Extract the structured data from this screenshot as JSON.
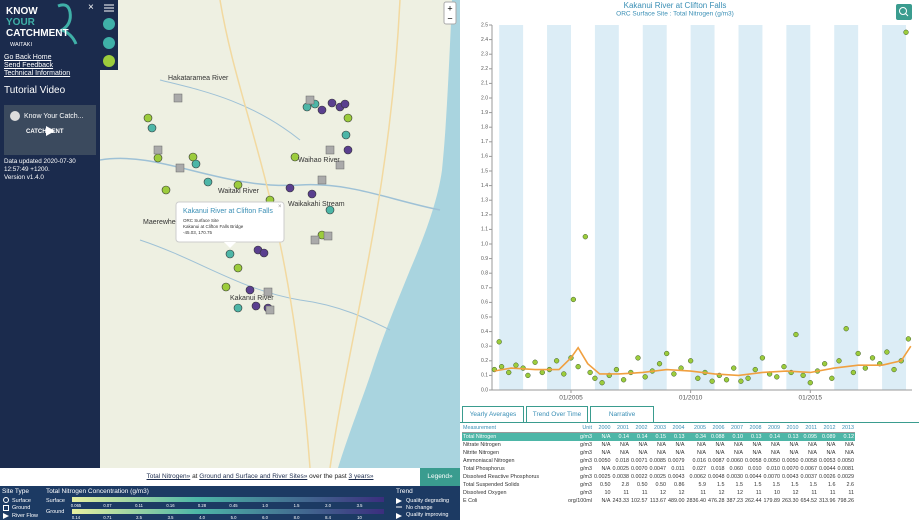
{
  "sidebar": {
    "logo": [
      "KNOW",
      "YOUR",
      "CATCHMENT"
    ],
    "region": "WAITAKI",
    "close": "×",
    "links": [
      "Go Back Home",
      "Send Feedback",
      "Technical Information"
    ],
    "video_heading": "Tutorial Video",
    "video_title": "Know Your Catch...",
    "video_logo": "CATCHMENT",
    "updated": "Data updated 2020-07-30 12:57:49 +1200.",
    "version": "Version v1.4.0"
  },
  "map": {
    "zoom_in": "+",
    "zoom_out": "−",
    "labels": [
      "Hakataramea River",
      "Waitaki River",
      "Maerewhenua",
      "Waihao River",
      "Waikakahi Stream",
      "Kakanui River"
    ],
    "popup": {
      "title": "Kakanui River at Clifton Falls",
      "lines": [
        "ORC Surface Site",
        "Kakanui at Clifton Falls Bridge",
        "-45.03, 170.75"
      ],
      "close": "×"
    }
  },
  "filter": {
    "measure": "Total Nitrogen»",
    "at": "at",
    "sites": "Ground and Surface and River Sites»",
    "over": "over the past",
    "period": "3 years»",
    "legend_button": "Legend»"
  },
  "legend": {
    "site_type": "Site Type",
    "site_types": [
      "Surface",
      "Ground",
      "River Flow"
    ],
    "concentration": "Total Nitrogen Concentration (g/m3)",
    "surface": "Surface",
    "ground": "Ground",
    "surface_scale": [
      "0.065",
      "0.07",
      "0.11",
      "0.16",
      "0.28",
      "0.45",
      "1.0",
      "1.5",
      "2.0",
      "3.5"
    ],
    "ground_scale": [
      "0.14",
      "0.71",
      "2.5",
      "3.5",
      "4.0",
      "5.0",
      "6.0",
      "8.0",
      "8.4",
      "10"
    ],
    "trend": "Trend",
    "trends": [
      "Quality degrading",
      "No change",
      "Quality improving"
    ]
  },
  "chart_data": {
    "type": "scatter",
    "title": "Kakanui River at Clifton Falls",
    "subtitle": "ORC Surface Site : Total Nitrogen (g/m3)",
    "xlim": [
      2001.7,
      2019.25
    ],
    "xticks": [
      {
        "value": 2005,
        "label": "01/2005"
      },
      {
        "value": 2010,
        "label": "01/2010"
      },
      {
        "value": 2015,
        "label": "01/2015"
      }
    ],
    "ylim": [
      0,
      2.5
    ],
    "yticks": [
      {
        "value": 0,
        "label": "0.0"
      },
      0.1,
      0.2,
      0.3,
      0.4,
      0.5,
      0.6,
      0.7,
      0.8,
      0.9,
      {
        "value": 1,
        "label": "1.0"
      },
      1.1,
      1.2,
      1.3,
      1.4,
      1.5,
      1.6,
      1.7,
      1.8,
      1.9,
      {
        "value": 2,
        "label": "2.0"
      },
      2.1,
      2.2,
      2.3,
      2.4,
      2.5
    ],
    "series": [
      {
        "type": "scatter",
        "color": "#9ccc3c",
        "x": [
          2001.8,
          2002.0,
          2002.1,
          2002.4,
          2002.7,
          2003.0,
          2003.2,
          2003.5,
          2003.8,
          2004.1,
          2004.4,
          2004.7,
          2005.0,
          2005.1,
          2005.3,
          2005.6,
          2005.8,
          2006.0,
          2006.3,
          2006.6,
          2006.9,
          2007.2,
          2007.5,
          2007.8,
          2008.1,
          2008.4,
          2008.7,
          2009.0,
          2009.3,
          2009.6,
          2010.0,
          2010.3,
          2010.6,
          2010.9,
          2011.2,
          2011.5,
          2011.8,
          2012.1,
          2012.4,
          2012.7,
          2013.0,
          2013.3,
          2013.6,
          2013.9,
          2014.2,
          2014.4,
          2014.7,
          2015.0,
          2015.3,
          2015.6,
          2015.9,
          2016.2,
          2016.5,
          2016.8,
          2017.0,
          2017.3,
          2017.6,
          2017.9,
          2018.2,
          2018.5,
          2018.8,
          2019.0,
          2019.1
        ],
        "values": [
          0.14,
          0.33,
          0.16,
          0.12,
          0.17,
          0.15,
          0.1,
          0.19,
          0.12,
          0.14,
          0.2,
          0.11,
          0.22,
          0.62,
          0.16,
          1.05,
          0.12,
          0.08,
          0.05,
          0.1,
          0.14,
          0.07,
          0.12,
          0.22,
          0.09,
          0.13,
          0.18,
          0.25,
          0.11,
          0.15,
          0.2,
          0.08,
          0.12,
          0.06,
          0.1,
          0.07,
          0.15,
          0.06,
          0.08,
          0.14,
          0.22,
          0.11,
          0.09,
          0.16,
          0.12,
          0.38,
          0.1,
          0.05,
          0.13,
          0.18,
          0.08,
          0.2,
          0.42,
          0.12,
          0.25,
          0.15,
          0.22,
          0.18,
          0.26,
          0.14,
          0.2,
          2.45,
          0.35
        ]
      },
      {
        "type": "line",
        "color": "#f0a040",
        "x": [
          2001.8,
          2002.5,
          2003.5,
          2004.5,
          2005.0,
          2005.3,
          2005.7,
          2006.2,
          2007,
          2008,
          2009,
          2010,
          2011,
          2012,
          2013,
          2014,
          2015,
          2016,
          2017,
          2018,
          2018.8,
          2019.2
        ],
        "values": [
          0.13,
          0.15,
          0.14,
          0.14,
          0.22,
          0.29,
          0.18,
          0.11,
          0.11,
          0.12,
          0.14,
          0.13,
          0.11,
          0.1,
          0.12,
          0.13,
          0.12,
          0.15,
          0.17,
          0.17,
          0.2,
          0.3
        ]
      }
    ]
  },
  "tabs": [
    "Yearly Averages",
    "Trend Over Time",
    "Narrative"
  ],
  "table": {
    "header": [
      "Measurement",
      "Unit",
      "2000",
      "2001",
      "2002",
      "2003",
      "2004",
      "2005",
      "2006",
      "2007",
      "2008",
      "2009",
      "2010",
      "2011",
      "2012",
      "2013"
    ],
    "rows": [
      [
        "Total Nitrogen",
        "g/m3",
        "N/A",
        "0.14",
        "0.14",
        "0.15",
        "0.13",
        "0.34",
        "0.088",
        "0.10",
        "0.13",
        "0.14",
        "0.13",
        "0.095",
        "0.089",
        "0.12"
      ],
      [
        "Nitrate Nitrogen",
        "g/m3",
        "N/A",
        "N/A",
        "N/A",
        "N/A",
        "N/A",
        "N/A",
        "N/A",
        "N/A",
        "N/A",
        "N/A",
        "N/A",
        "N/A",
        "N/A",
        "N/A"
      ],
      [
        "Nitrite Nitrogen",
        "g/m3",
        "N/A",
        "N/A",
        "N/A",
        "N/A",
        "N/A",
        "N/A",
        "N/A",
        "N/A",
        "N/A",
        "N/A",
        "N/A",
        "N/A",
        "N/A",
        "N/A"
      ],
      [
        "Ammoniacal Nitrogen",
        "g/m3",
        "0.0050",
        "0.018",
        "0.0071",
        "0.0085",
        "0.0079",
        "0.016",
        "0.0087",
        "0.0060",
        "0.0058",
        "0.0050",
        "0.0050",
        "0.0058",
        "0.0053",
        "0.0050"
      ],
      [
        "Total Phosphorus",
        "g/m3",
        "N/A",
        "0.0025",
        "0.0070",
        "0.0047",
        "0.011",
        "0.027",
        "0.018",
        "0.060",
        "0.010",
        "0.010",
        "0.0070",
        "0.0067",
        "0.0044",
        "0.0081"
      ],
      [
        "Dissolved Reactive Phosphorus",
        "g/m3",
        "0.0025",
        "0.0038",
        "0.0022",
        "0.0025",
        "0.0043",
        "0.0062",
        "0.0048",
        "0.0030",
        "0.0044",
        "0.0070",
        "0.0043",
        "0.0037",
        "0.0026",
        "0.0029"
      ],
      [
        "Total Suspended Solids",
        "g/m3",
        "0.50",
        "2.8",
        "0.50",
        "0.50",
        "0.86",
        "5.9",
        "1.5",
        "1.5",
        "1.5",
        "1.5",
        "1.5",
        "1.5",
        "1.6",
        "2.6"
      ],
      [
        "Dissolved Oxygen",
        "g/m3",
        "10",
        "11",
        "11",
        "12",
        "12",
        "11",
        "12",
        "12",
        "11",
        "10",
        "12",
        "11",
        "11",
        "11"
      ],
      [
        "E Coli",
        "org/100ml",
        "N/A",
        "243.33",
        "102.57",
        "113.67",
        "489.00",
        "2836.40",
        "476.28",
        "387.23",
        "262.44",
        "179.89",
        "263.30",
        "654.52",
        "313.96",
        "798.26"
      ]
    ]
  }
}
